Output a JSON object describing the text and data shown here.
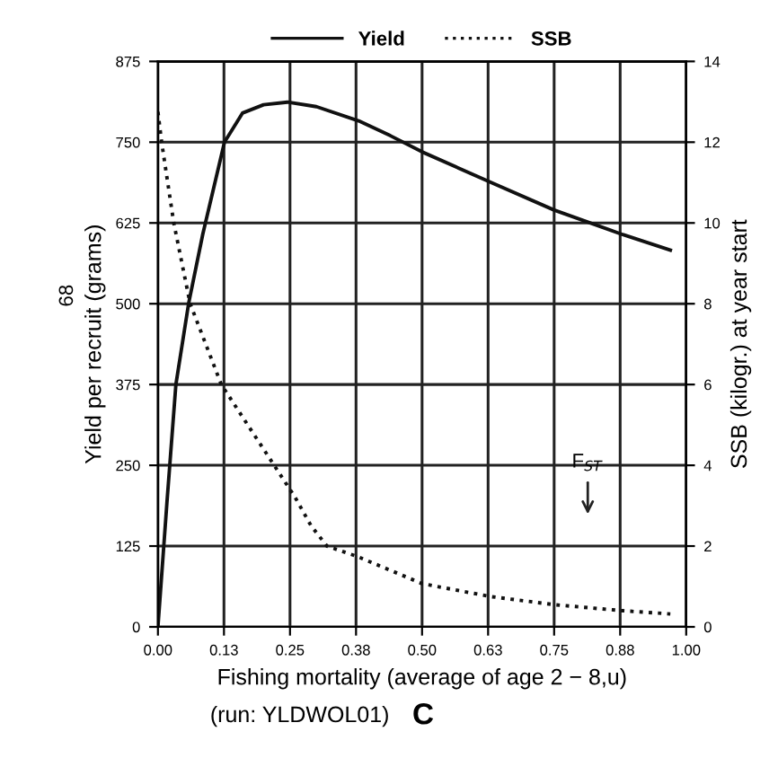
{
  "chart_data": {
    "type": "line",
    "xlabel": "Fishing mortality (average of age 2 − 8,u)",
    "ylabel": "Yield per recruit (grams)",
    "y2label": "SSB (kilogr.) at year start",
    "series": [
      {
        "name": "Yield",
        "color": "#111111",
        "line_style": "solid",
        "x": [
          0.0,
          0.017,
          0.034,
          0.058,
          0.085,
          0.126,
          0.16,
          0.2,
          0.245,
          0.3,
          0.38,
          0.44,
          0.5,
          0.63,
          0.75,
          0.88,
          0.97
        ],
        "values": [
          0,
          192,
          375,
          500,
          608,
          750,
          795,
          808,
          812,
          805,
          783,
          760,
          735,
          688,
          645,
          607,
          583
        ]
      },
      {
        "name": "SSB",
        "color": "#111111",
        "line_style": "dotted",
        "axis": "y2",
        "x": [
          0.0,
          0.007,
          0.03,
          0.061,
          0.12,
          0.22,
          0.26,
          0.29,
          0.32,
          0.38,
          0.5,
          0.63,
          0.75,
          0.88,
          0.97
        ],
        "values": [
          12.75,
          12,
          10,
          8,
          6,
          4,
          3.2,
          2.5,
          2,
          1.73,
          1.07,
          0.75,
          0.55,
          0.4,
          0.32
        ]
      }
    ],
    "xlim": [
      0,
      1.0
    ],
    "xticks": [
      {
        "value": 0,
        "label": "0.00"
      },
      {
        "value": 0.125,
        "label": "0.13"
      },
      {
        "value": 0.25,
        "label": "0.25"
      },
      {
        "value": 0.375,
        "label": "0.38"
      },
      {
        "value": 0.5,
        "label": "0.50"
      },
      {
        "value": 0.625,
        "label": "0.63"
      },
      {
        "value": 0.75,
        "label": "0.75"
      },
      {
        "value": 0.875,
        "label": "0.88"
      },
      {
        "value": 1.0,
        "label": "1.00"
      }
    ],
    "ylim": [
      0,
      875
    ],
    "yticks": [
      0,
      125,
      250,
      375,
      500,
      625,
      750,
      875
    ],
    "y2lim": [
      0,
      14
    ],
    "y2ticks": [
      0,
      2,
      4,
      6,
      8,
      10,
      12,
      14
    ],
    "grid": true,
    "legend": "top",
    "annotations": [
      "F$_{ST}$",
      "(run: YLDWOL01)",
      "C",
      "68"
    ]
  }
}
